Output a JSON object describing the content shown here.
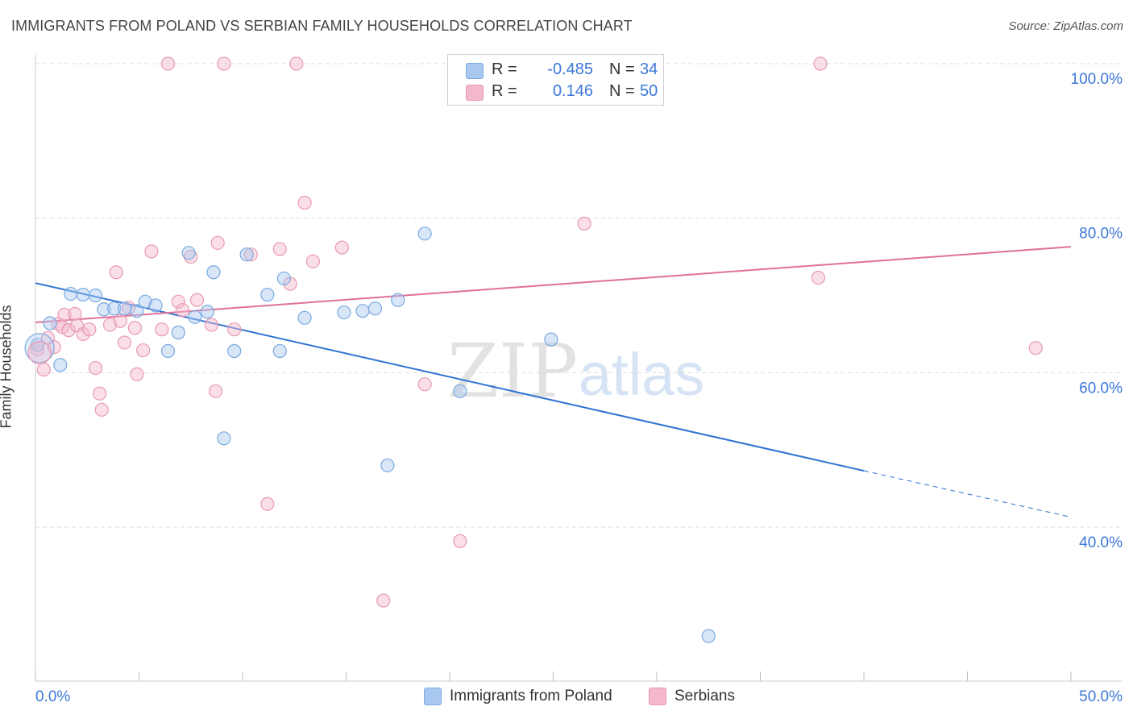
{
  "header": {
    "title": "IMMIGRANTS FROM POLAND VS SERBIAN FAMILY HOUSEHOLDS CORRELATION CHART",
    "source": "Source: ZipAtlas.com"
  },
  "watermark": {
    "zip": "ZIP",
    "atlas": "atlas"
  },
  "legend": {
    "rows": [
      {
        "r_label": "R =",
        "r_value": "-0.485",
        "n_label": "N =",
        "n_value": "34",
        "color": "#a8c8f0"
      },
      {
        "r_label": "R =",
        "r_value": "0.146",
        "n_label": "N =",
        "n_value": "50",
        "color": "#f5b8cb"
      }
    ]
  },
  "bottom_legend": {
    "poland": "Immigrants from Poland",
    "serbians": "Serbians"
  },
  "colors": {
    "blue_fill": "#a8c8f0",
    "blue_stroke": "#7aaae0",
    "blue_line": "#2f73d2",
    "pink_fill": "#f5b8cb",
    "pink_stroke": "#e899b2",
    "pink_line": "#e0709a",
    "tick_text": "#3b78d8",
    "grid": "#dddddd"
  },
  "chart_data": {
    "type": "scatter",
    "title": "IMMIGRANTS FROM POLAND VS SERBIAN FAMILY HOUSEHOLDS CORRELATION CHART",
    "xlabel": "",
    "ylabel": "Family Households",
    "xlim": [
      0,
      50
    ],
    "ylim": [
      20,
      102
    ],
    "x_tick_labels": [
      "0.0%",
      "50.0%"
    ],
    "y_ticks": [
      40,
      60,
      80,
      100
    ],
    "y_tick_labels": [
      "40.0%",
      "60.0%",
      "80.0%",
      "100.0%"
    ],
    "series": [
      {
        "name": "Immigrants from Poland",
        "r": -0.485,
        "n": 34,
        "points": [
          [
            0.1,
            63.6
          ],
          [
            0.7,
            66.4
          ],
          [
            1.2,
            61.0
          ],
          [
            1.7,
            70.2
          ],
          [
            2.3,
            70.1
          ],
          [
            2.9,
            70.0
          ],
          [
            3.3,
            68.2
          ],
          [
            3.8,
            68.3
          ],
          [
            4.3,
            68.3
          ],
          [
            4.9,
            68.0
          ],
          [
            5.3,
            69.2
          ],
          [
            5.8,
            68.7
          ],
          [
            6.4,
            62.8
          ],
          [
            6.9,
            65.2
          ],
          [
            7.4,
            75.5
          ],
          [
            7.7,
            67.2
          ],
          [
            8.3,
            67.9
          ],
          [
            8.6,
            73.0
          ],
          [
            9.1,
            51.5
          ],
          [
            9.6,
            62.8
          ],
          [
            10.2,
            75.3
          ],
          [
            11.2,
            70.1
          ],
          [
            11.8,
            62.8
          ],
          [
            12.0,
            72.2
          ],
          [
            13.0,
            67.1
          ],
          [
            14.9,
            67.8
          ],
          [
            15.8,
            68.0
          ],
          [
            16.4,
            68.3
          ],
          [
            17.0,
            48.0
          ],
          [
            17.5,
            69.4
          ],
          [
            18.8,
            78.0
          ],
          [
            20.5,
            57.6
          ],
          [
            24.9,
            64.3
          ],
          [
            32.5,
            25.9
          ]
        ],
        "trend": {
          "x0": 0,
          "y0": 71.6,
          "x1": 40,
          "y1": 47.3,
          "dash_x1": 50,
          "dash_y1": 41.3
        }
      },
      {
        "name": "Serbians",
        "r": 0.146,
        "n": 50,
        "points": [
          [
            0.1,
            63.0
          ],
          [
            0.4,
            60.4
          ],
          [
            0.6,
            64.5
          ],
          [
            0.9,
            63.3
          ],
          [
            1.1,
            66.3
          ],
          [
            1.3,
            65.9
          ],
          [
            1.4,
            67.5
          ],
          [
            1.6,
            65.5
          ],
          [
            1.9,
            67.6
          ],
          [
            2.0,
            66.1
          ],
          [
            2.3,
            65.0
          ],
          [
            2.6,
            65.6
          ],
          [
            2.9,
            60.6
          ],
          [
            3.1,
            57.3
          ],
          [
            3.2,
            55.2
          ],
          [
            3.6,
            66.2
          ],
          [
            3.9,
            73.0
          ],
          [
            4.1,
            66.7
          ],
          [
            4.3,
            63.9
          ],
          [
            4.5,
            68.4
          ],
          [
            4.8,
            65.8
          ],
          [
            4.9,
            59.8
          ],
          [
            5.2,
            62.9
          ],
          [
            5.6,
            75.7
          ],
          [
            6.1,
            65.6
          ],
          [
            6.4,
            100.0
          ],
          [
            6.9,
            69.2
          ],
          [
            7.1,
            68.1
          ],
          [
            7.5,
            75.0
          ],
          [
            7.8,
            69.4
          ],
          [
            8.5,
            66.2
          ],
          [
            8.7,
            57.6
          ],
          [
            8.8,
            76.8
          ],
          [
            9.1,
            100.0
          ],
          [
            9.6,
            65.6
          ],
          [
            10.4,
            75.3
          ],
          [
            11.2,
            43.0
          ],
          [
            11.8,
            76.0
          ],
          [
            12.3,
            71.5
          ],
          [
            12.6,
            100.0
          ],
          [
            13.0,
            82.0
          ],
          [
            13.4,
            74.4
          ],
          [
            14.8,
            76.2
          ],
          [
            16.8,
            30.5
          ],
          [
            18.8,
            58.5
          ],
          [
            20.5,
            38.2
          ],
          [
            26.5,
            79.3
          ],
          [
            37.8,
            72.3
          ],
          [
            37.9,
            100.0
          ],
          [
            48.3,
            63.2
          ]
        ],
        "trend": {
          "x0": 0,
          "y0": 66.5,
          "x1": 50,
          "y1": 76.3
        }
      }
    ]
  }
}
